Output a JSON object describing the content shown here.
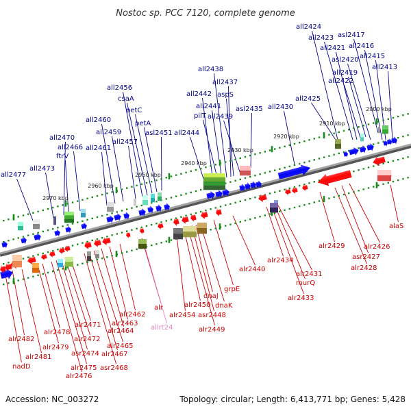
{
  "title": "Nostoc sp. PCC 7120, complete genome",
  "footer": {
    "accession": "Accession: NC_003272",
    "topology": "Topology: circular; Length: 6,413,771 bp; Genes: 5,428"
  },
  "colors": {
    "forward_label": "#00008b",
    "reverse_label": "#cc0000",
    "rna_label": "#e28ac4",
    "forward_arrow": "#0000ff",
    "reverse_arrow": "#ff0000",
    "ruler": "#777777",
    "tick": "#1a8a1a"
  },
  "kbp_ticks": [
    "2900 kbp",
    "2910 kbp",
    "2920 kbp",
    "2930 kbp",
    "2940 kbp",
    "2950 kbp",
    "2960 kbp",
    "2970 kbp"
  ],
  "forward_genes": [
    "all2413",
    "all2415",
    "all2416",
    "asl2417",
    "asl2420",
    "all2419",
    "all2422",
    "all2421",
    "all2423",
    "all2424",
    "all2425",
    "all2430",
    "asl2435",
    "all2439",
    "aspS",
    "all2437",
    "all2438",
    "all2441",
    "pilT",
    "all2442",
    "all2444",
    "asl2451",
    "petA",
    "petC",
    "csaA",
    "all2456",
    "all2457",
    "all2459",
    "all2460",
    "all2461",
    "all2466",
    "ftrV",
    "all2470",
    "all2473",
    "all2477"
  ],
  "reverse_genes": [
    "alaS",
    "alr2426",
    "asr2427",
    "alr2428",
    "alr2429",
    "alr2431",
    "murQ",
    "alr2433",
    "alr2434",
    "alr2440",
    "grpE",
    "dnaK",
    "dnaJ",
    "asr2448",
    "alr2449",
    "alr2450",
    "alr2454",
    "alr",
    "alr2462",
    "alr2463",
    "alr2464",
    "alr2465",
    "alr2467",
    "asr2468",
    "alr2471",
    "alr2472",
    "asr2474",
    "alr2475",
    "alr2476",
    "alr2478",
    "alr2479",
    "alr2481",
    "alr2482",
    "nadD"
  ],
  "rna_genes": [
    "allrt24"
  ]
}
